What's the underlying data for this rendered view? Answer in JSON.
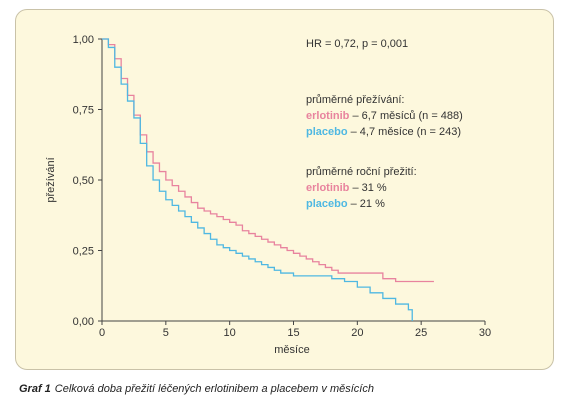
{
  "chart_data": {
    "type": "line",
    "xlabel": "měsíce",
    "ylabel": "přežívání",
    "xlim": [
      0,
      30
    ],
    "ylim": [
      0,
      1
    ],
    "x_ticks": [
      "0",
      "5",
      "10",
      "15",
      "20",
      "25",
      "30"
    ],
    "y_ticks": [
      "0,00",
      "0,25",
      "0,50",
      "0,75",
      "1,00"
    ],
    "grid": false,
    "series": [
      {
        "name": "erlotinib",
        "color": "#e8839e",
        "step": true,
        "x": [
          0,
          0.5,
          1.0,
          1.5,
          2.0,
          2.5,
          3.0,
          3.5,
          4.0,
          4.5,
          5.0,
          5.5,
          6.0,
          6.5,
          7.0,
          7.5,
          8.0,
          8.5,
          9.0,
          9.5,
          10.0,
          10.5,
          11.0,
          11.5,
          12.0,
          12.5,
          13.0,
          13.5,
          14.0,
          14.5,
          15.0,
          15.5,
          16.0,
          16.5,
          17.0,
          17.5,
          18.0,
          18.5,
          19.0,
          19.5,
          20.0,
          21.0,
          22.0,
          23.0,
          24.0,
          25.0,
          26.0
        ],
        "y": [
          1.0,
          0.98,
          0.93,
          0.86,
          0.8,
          0.73,
          0.66,
          0.6,
          0.56,
          0.53,
          0.5,
          0.48,
          0.46,
          0.44,
          0.42,
          0.4,
          0.39,
          0.38,
          0.37,
          0.36,
          0.35,
          0.34,
          0.32,
          0.31,
          0.3,
          0.29,
          0.28,
          0.27,
          0.26,
          0.25,
          0.24,
          0.23,
          0.22,
          0.21,
          0.2,
          0.19,
          0.18,
          0.17,
          0.17,
          0.17,
          0.17,
          0.17,
          0.15,
          0.14,
          0.14,
          0.14,
          0.14
        ]
      },
      {
        "name": "placebo",
        "color": "#4fb8e2",
        "step": true,
        "x": [
          0,
          0.5,
          1.0,
          1.5,
          2.0,
          2.5,
          3.0,
          3.5,
          4.0,
          4.5,
          5.0,
          5.5,
          6.0,
          6.5,
          7.0,
          7.5,
          8.0,
          8.5,
          9.0,
          9.5,
          10.0,
          10.5,
          11.0,
          11.5,
          12.0,
          12.5,
          13.0,
          13.5,
          14.0,
          14.5,
          15.0,
          16.0,
          17.0,
          18.0,
          19.0,
          20.0,
          21.0,
          22.0,
          23.0,
          24.0,
          24.3
        ],
        "y": [
          1.0,
          0.97,
          0.9,
          0.84,
          0.78,
          0.72,
          0.63,
          0.55,
          0.5,
          0.46,
          0.43,
          0.41,
          0.39,
          0.37,
          0.35,
          0.33,
          0.31,
          0.29,
          0.27,
          0.26,
          0.25,
          0.24,
          0.23,
          0.22,
          0.21,
          0.2,
          0.19,
          0.18,
          0.17,
          0.17,
          0.16,
          0.16,
          0.16,
          0.15,
          0.14,
          0.12,
          0.1,
          0.08,
          0.06,
          0.04,
          0.0
        ]
      }
    ],
    "annotations": {
      "hr": "HR = 0,72, p = 0,001",
      "median_title": "průměrné přežívání:",
      "median_erlotinib_name": "erlotinib",
      "median_erlotinib_text": " – 6,7 měsíců (n = 488)",
      "median_placebo_name": "placebo",
      "median_placebo_text": " – 4,7 měsíce (n = 243)",
      "annual_title": "průměrné roční přežití:",
      "annual_erlotinib_name": "erlotinib",
      "annual_erlotinib_text": " – 31 %",
      "annual_placebo_name": "placebo",
      "annual_placebo_text": " – 21 %"
    }
  },
  "caption": {
    "label": "Graf 1",
    "text": "Celková doba přežití léčených erlotinibem a placebem v měsících"
  },
  "colors": {
    "panel_bg": "#fdf8dd",
    "panel_border": "#c9c2a8",
    "axis": "#444444"
  }
}
